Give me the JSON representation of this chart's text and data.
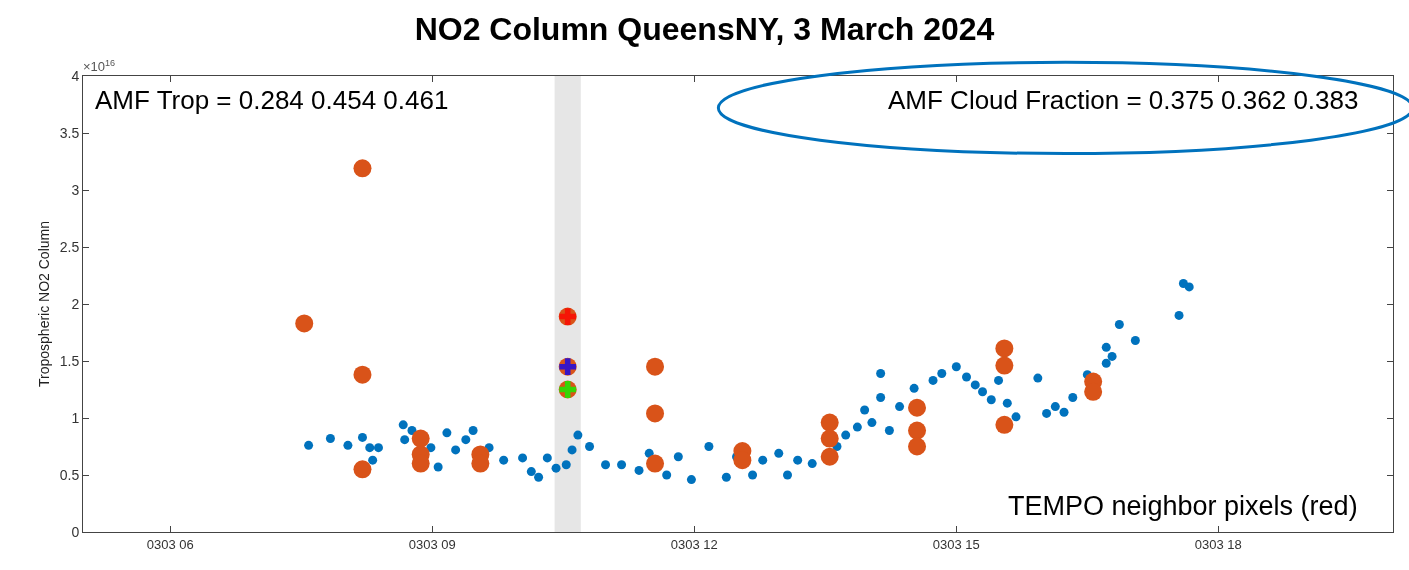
{
  "chart_data": {
    "type": "scatter",
    "title": "NO2 Column QueensNY, 3 March 2024",
    "ylabel": "Tropospheric NO2 Column",
    "annotations": [
      "×10$^{16}$",
      "AMF Trop = 0.284 0.454 0.461",
      "AMF Cloud Fraction = 0.375 0.362 0.383",
      "TEMPO neighbor pixels (red)"
    ],
    "xlim": [
      "2024-03-03T05:00",
      "2024-03-03T20:00"
    ],
    "xticks": [
      {
        "value": "2024-03-03T06:00",
        "label": "0303 06"
      },
      {
        "value": "2024-03-03T09:00",
        "label": "0303 09"
      },
      {
        "value": "2024-03-03T12:00",
        "label": "0303 12"
      },
      {
        "value": "2024-03-03T15:00",
        "label": "0303 15"
      },
      {
        "value": "2024-03-03T18:00",
        "label": "0303 18"
      }
    ],
    "ylim": [
      0,
      4
    ],
    "yticks": [
      0,
      0.5,
      1,
      1.5,
      2,
      2.5,
      3,
      3.5,
      4
    ],
    "grid": false,
    "marker": "circle",
    "bands": [
      {
        "axis": "x",
        "from": "2024-03-03T10:24",
        "to": "2024-03-03T10:42",
        "color": "#e6e6e6"
      }
    ],
    "series": [
      {
        "color": "#0072bd",
        "x": [
          "2024-03-03T07:35",
          "2024-03-03T07:50",
          "2024-03-03T08:02",
          "2024-03-03T08:12",
          "2024-03-03T08:17",
          "2024-03-03T08:23",
          "2024-03-03T08:19",
          "2024-03-03T08:40",
          "2024-03-03T08:41",
          "2024-03-03T08:46",
          "2024-03-03T08:59",
          "2024-03-03T09:04",
          "2024-03-03T09:10",
          "2024-03-03T09:16",
          "2024-03-03T09:23",
          "2024-03-03T09:28",
          "2024-03-03T09:39",
          "2024-03-03T09:49",
          "2024-03-03T10:02",
          "2024-03-03T10:08",
          "2024-03-03T10:13",
          "2024-03-03T10:19",
          "2024-03-03T10:25",
          "2024-03-03T10:32",
          "2024-03-03T10:36",
          "2024-03-03T10:40",
          "2024-03-03T10:48",
          "2024-03-03T10:59",
          "2024-03-03T11:10",
          "2024-03-03T11:22",
          "2024-03-03T11:29",
          "2024-03-03T11:41",
          "2024-03-03T11:49",
          "2024-03-03T11:58",
          "2024-03-03T12:10",
          "2024-03-03T12:22",
          "2024-03-03T12:29",
          "2024-03-03T12:40",
          "2024-03-03T12:47",
          "2024-03-03T12:58",
          "2024-03-03T13:04",
          "2024-03-03T13:11",
          "2024-03-03T13:21",
          "2024-03-03T13:38",
          "2024-03-03T13:44",
          "2024-03-03T13:52",
          "2024-03-03T13:57",
          "2024-03-03T14:02",
          "2024-03-03T14:08",
          "2024-03-03T14:08",
          "2024-03-03T14:14",
          "2024-03-03T14:21",
          "2024-03-03T14:31",
          "2024-03-03T14:44",
          "2024-03-03T14:50",
          "2024-03-03T15:00",
          "2024-03-03T15:07",
          "2024-03-03T15:13",
          "2024-03-03T15:18",
          "2024-03-03T15:24",
          "2024-03-03T15:29",
          "2024-03-03T15:35",
          "2024-03-03T15:41",
          "2024-03-03T15:56",
          "2024-03-03T16:02",
          "2024-03-03T16:08",
          "2024-03-03T16:14",
          "2024-03-03T16:20",
          "2024-03-03T16:30",
          "2024-03-03T16:43",
          "2024-03-03T16:43",
          "2024-03-03T16:47",
          "2024-03-03T16:52",
          "2024-03-03T17:03",
          "2024-03-03T17:33",
          "2024-03-03T17:36",
          "2024-03-03T17:40"
        ],
        "values": [
          0.76,
          0.82,
          0.76,
          0.83,
          0.74,
          0.74,
          0.63,
          0.94,
          0.81,
          0.89,
          0.74,
          0.57,
          0.87,
          0.72,
          0.81,
          0.89,
          0.74,
          0.63,
          0.65,
          0.53,
          0.48,
          0.65,
          0.56,
          0.59,
          0.72,
          0.85,
          0.75,
          0.59,
          0.59,
          0.54,
          0.69,
          0.5,
          0.66,
          0.46,
          0.75,
          0.48,
          0.66,
          0.5,
          0.63,
          0.69,
          0.5,
          0.63,
          0.6,
          0.75,
          0.85,
          0.92,
          1.07,
          0.96,
          1.39,
          1.18,
          0.89,
          1.1,
          1.26,
          1.33,
          1.39,
          1.45,
          1.36,
          1.29,
          1.23,
          1.16,
          1.33,
          1.13,
          1.01,
          1.35,
          1.04,
          1.1,
          1.05,
          1.18,
          1.38,
          1.48,
          1.62,
          1.54,
          1.82,
          1.68,
          1.9,
          2.18,
          2.15
        ]
      },
      {
        "color": "#d95319",
        "x": [
          "2024-03-03T07:32",
          "2024-03-03T08:12",
          "2024-03-03T08:12",
          "2024-03-03T08:12",
          "2024-03-03T08:52",
          "2024-03-03T08:52",
          "2024-03-03T08:52",
          "2024-03-03T09:33",
          "2024-03-03T09:33",
          "2024-03-03T10:33",
          "2024-03-03T10:33",
          "2024-03-03T10:33",
          "2024-03-03T11:33",
          "2024-03-03T11:33",
          "2024-03-03T11:33",
          "2024-03-03T12:33",
          "2024-03-03T12:33",
          "2024-03-03T13:33",
          "2024-03-03T13:33",
          "2024-03-03T13:33",
          "2024-03-03T14:33",
          "2024-03-03T14:33",
          "2024-03-03T14:33",
          "2024-03-03T15:33",
          "2024-03-03T15:33",
          "2024-03-03T15:33",
          "2024-03-03T16:34",
          "2024-03-03T16:34"
        ],
        "values": [
          1.83,
          3.19,
          1.38,
          0.55,
          0.82,
          0.68,
          0.6,
          0.68,
          0.6,
          1.89,
          1.45,
          1.25,
          1.45,
          1.04,
          0.6,
          0.71,
          0.63,
          0.96,
          0.82,
          0.66,
          1.09,
          0.89,
          0.75,
          1.61,
          1.46,
          0.94,
          1.32,
          1.23
        ]
      },
      {
        "color": "#ff0000",
        "marker": "cross",
        "x": [
          "2024-03-03T10:33"
        ],
        "values": [
          1.89
        ]
      },
      {
        "color": "#0000ff",
        "marker": "cross",
        "x": [
          "2024-03-03T10:33"
        ],
        "values": [
          1.45
        ]
      },
      {
        "color": "#00ff00",
        "marker": "cross",
        "x": [
          "2024-03-03T10:33"
        ],
        "values": [
          1.25
        ]
      }
    ]
  }
}
